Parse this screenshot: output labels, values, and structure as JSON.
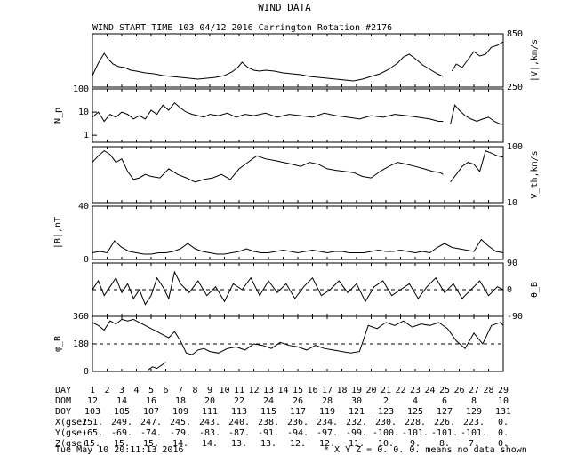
{
  "chart_data": {
    "type": "line",
    "title": "WIND DATA",
    "subtitle": "WIND START TIME 103 04/12 2016 Carrington Rotation #2176",
    "x_range_days": [
      1,
      29
    ],
    "panels": [
      {
        "ylabel": "|V|,km/s",
        "ylabel_side": "right",
        "scale": "linear",
        "ylim": [
          250,
          850
        ],
        "tick_labels_right": [
          "850",
          "250"
        ],
        "series": [
          {
            "x": [
              1.0,
              1.4,
              1.8,
              2.1,
              2.4,
              2.8,
              3.2,
              3.6,
              4.0,
              4.6,
              5.2,
              5.8,
              6.4,
              7.0,
              7.6,
              8.2,
              8.8,
              9.4,
              10.0,
              10.5,
              10.9,
              11.2,
              11.6,
              12.0,
              12.4,
              12.8,
              13.4,
              14.0,
              14.6,
              15.2,
              15.8,
              16.4,
              17.0,
              17.6,
              18.2,
              18.8,
              19.4,
              20.0,
              20.6,
              21.2,
              21.8,
              22.2,
              22.6,
              23.0,
              23.5,
              24.0,
              24.5,
              24.9
            ],
            "y": [
              380,
              520,
              630,
              560,
              510,
              480,
              470,
              440,
              430,
              410,
              400,
              380,
              370,
              360,
              350,
              340,
              350,
              360,
              380,
              420,
              470,
              530,
              470,
              440,
              430,
              440,
              430,
              410,
              400,
              390,
              370,
              360,
              350,
              340,
              330,
              320,
              340,
              370,
              400,
              450,
              520,
              590,
              620,
              570,
              500,
              450,
              400,
              370
            ]
          },
          {
            "x": [
              25.5,
              25.8,
              26.2,
              26.6,
              27.0,
              27.4,
              27.8,
              28.2,
              28.6,
              29.0
            ],
            "y": [
              430,
              510,
              470,
              560,
              650,
              600,
              620,
              700,
              720,
              760
            ]
          }
        ]
      },
      {
        "ylabel": "N_p",
        "ylabel_side": "left",
        "scale": "log",
        "ylim": [
          0.5,
          100
        ],
        "ticks": [
          1,
          10,
          100
        ],
        "tick_labels_left": [
          "1",
          "10",
          "100"
        ],
        "series": [
          {
            "x": [
              1.0,
              1.4,
              1.8,
              2.2,
              2.6,
              3.0,
              3.4,
              3.8,
              4.2,
              4.6,
              5.0,
              5.4,
              5.8,
              6.2,
              6.6,
              7.0,
              7.4,
              7.8,
              8.2,
              8.6,
              9.0,
              9.6,
              10.2,
              10.8,
              11.4,
              12.0,
              12.8,
              13.6,
              14.4,
              15.2,
              16.0,
              16.8,
              17.6,
              18.4,
              19.2,
              20.0,
              20.8,
              21.6,
              22.4,
              23.2,
              24.0,
              24.6,
              24.9
            ],
            "y": [
              6,
              10,
              4,
              8,
              6,
              10,
              8,
              5,
              7,
              5,
              12,
              8,
              20,
              12,
              25,
              15,
              10,
              8,
              7,
              6,
              8,
              7,
              9,
              6,
              8,
              7,
              9,
              6,
              8,
              7,
              6,
              9,
              7,
              6,
              5,
              7,
              6,
              8,
              7,
              6,
              5,
              4,
              4
            ]
          },
          {
            "x": [
              25.4,
              25.7,
              26.0,
              26.4,
              26.8,
              27.2,
              27.6,
              28.0,
              28.4,
              28.8,
              29.0
            ],
            "y": [
              3,
              20,
              12,
              7,
              5,
              4,
              5,
              6,
              4,
              3,
              3
            ]
          }
        ]
      },
      {
        "ylabel": "V_th,km/s",
        "ylabel_side": "right",
        "scale": "log",
        "ylim": [
          10,
          120
        ],
        "tick_labels_right": [
          "100",
          "10"
        ],
        "series": [
          {
            "x": [
              1.0,
              1.4,
              1.8,
              2.2,
              2.6,
              3.0,
              3.4,
              3.8,
              4.2,
              4.6,
              5.0,
              5.6,
              6.2,
              6.8,
              7.4,
              8.0,
              8.6,
              9.2,
              9.8,
              10.4,
              11.0,
              11.6,
              12.2,
              12.8,
              13.4,
              14.0,
              14.6,
              15.2,
              15.8,
              16.4,
              17.0,
              17.6,
              18.2,
              18.8,
              19.4,
              20.0,
              20.6,
              21.2,
              21.8,
              22.4,
              23.0,
              23.6,
              24.2,
              24.7,
              24.9
            ],
            "y": [
              60,
              80,
              100,
              85,
              60,
              70,
              40,
              28,
              30,
              35,
              32,
              30,
              45,
              35,
              30,
              25,
              28,
              30,
              35,
              28,
              45,
              60,
              80,
              70,
              65,
              60,
              55,
              50,
              60,
              55,
              45,
              42,
              40,
              38,
              32,
              30,
              40,
              50,
              60,
              55,
              50,
              45,
              40,
              38,
              35
            ]
          },
          {
            "x": [
              25.4,
              25.8,
              26.2,
              26.6,
              27.0,
              27.4,
              27.8,
              28.2,
              28.6,
              29.0
            ],
            "y": [
              25,
              35,
              50,
              60,
              55,
              40,
              100,
              90,
              80,
              75
            ]
          }
        ]
      },
      {
        "ylabel": "|B|,nT",
        "ylabel_side": "left",
        "scale": "linear",
        "ylim": [
          0,
          40
        ],
        "ticks": [
          0,
          40
        ],
        "tick_labels_left": [
          "0",
          "40"
        ],
        "series": [
          {
            "x": [
              1.0,
              1.5,
              2.0,
              2.5,
              3.0,
              3.5,
              4.0,
              4.5,
              5.0,
              5.5,
              6.0,
              6.5,
              7.0,
              7.5,
              8.0,
              8.5,
              9.0,
              9.5,
              10.0,
              10.5,
              11.0,
              11.5,
              12.0,
              12.5,
              13.0,
              13.5,
              14.0,
              14.5,
              15.0,
              15.5,
              16.0,
              16.5,
              17.0,
              17.5,
              18.0,
              18.5,
              19.0,
              19.5,
              20.0,
              20.5,
              21.0,
              21.5,
              22.0,
              22.5,
              23.0,
              23.5,
              24.0,
              24.5,
              25.0,
              25.5,
              26.0,
              26.5,
              27.0,
              27.5,
              28.0,
              28.5,
              29.0
            ],
            "y": [
              5,
              6,
              5,
              14,
              9,
              6,
              5,
              4,
              4,
              5,
              5,
              6,
              8,
              12,
              8,
              6,
              5,
              4,
              4,
              5,
              6,
              8,
              6,
              5,
              5,
              6,
              7,
              6,
              5,
              6,
              7,
              6,
              5,
              6,
              6,
              5,
              5,
              5,
              6,
              7,
              6,
              6,
              7,
              6,
              5,
              6,
              5,
              9,
              12,
              9,
              8,
              7,
              6,
              15,
              10,
              6,
              5
            ]
          }
        ]
      },
      {
        "ylabel": "θ_B",
        "ylabel_side": "right",
        "scale": "linear",
        "ylim": [
          -90,
          90
        ],
        "ticks": [
          -90,
          0,
          90
        ],
        "tick_labels_right": [
          "90",
          "0",
          "-90"
        ],
        "series": [
          {
            "x": [
              1.0,
              1.4,
              1.8,
              2.2,
              2.6,
              3.0,
              3.4,
              3.8,
              4.2,
              4.6,
              5.0,
              5.4,
              5.8,
              6.2,
              6.6,
              7.0,
              7.6,
              8.2,
              8.8,
              9.4,
              10.0,
              10.6,
              11.2,
              11.8,
              12.4,
              13.0,
              13.6,
              14.2,
              14.8,
              15.4,
              16.0,
              16.6,
              17.2,
              17.8,
              18.4,
              19.0,
              19.6,
              20.2,
              20.8,
              21.4,
              22.0,
              22.6,
              23.2,
              23.8,
              24.4,
              25.0,
              25.6,
              26.2,
              26.8,
              27.4,
              28.0,
              28.6,
              29.0
            ],
            "y": [
              0,
              30,
              -20,
              10,
              40,
              -10,
              20,
              -30,
              0,
              -50,
              -20,
              40,
              10,
              -30,
              60,
              20,
              -10,
              30,
              -20,
              10,
              -40,
              20,
              0,
              40,
              -20,
              30,
              -10,
              20,
              -30,
              10,
              40,
              -20,
              0,
              30,
              -10,
              20,
              -40,
              10,
              30,
              -20,
              0,
              20,
              -30,
              10,
              40,
              -10,
              20,
              -30,
              0,
              30,
              -20,
              10,
              0
            ]
          }
        ]
      },
      {
        "ylabel": "φ_B",
        "ylabel_side": "left",
        "scale": "linear",
        "ylim": [
          0,
          360
        ],
        "ticks": [
          0,
          180,
          360
        ],
        "tick_labels_left": [
          "0",
          "180",
          "360"
        ],
        "series": [
          {
            "x": [
              1.0,
              1.4,
              1.8,
              2.2,
              2.6,
              3.0,
              3.4,
              3.8,
              4.2,
              4.6,
              5.0,
              5.4,
              5.8,
              6.2,
              6.6,
              7.0,
              7.4,
              7.8,
              8.2,
              8.6,
              9.0,
              9.6,
              10.2,
              10.8,
              11.4,
              12.0,
              12.6,
              13.2,
              13.8,
              14.4,
              15.0,
              15.6,
              16.2,
              16.8,
              17.4,
              18.0,
              18.6,
              19.2,
              19.8,
              20.4,
              21.0,
              21.6,
              22.2,
              22.8,
              23.4,
              24.0,
              24.6,
              25.2,
              25.8,
              26.4,
              27.0,
              27.6,
              28.2,
              28.8,
              29.0
            ],
            "y": [
              320,
              300,
              270,
              330,
              310,
              340,
              330,
              340,
              320,
              300,
              280,
              260,
              240,
              220,
              260,
              200,
              120,
              110,
              140,
              150,
              130,
              120,
              150,
              160,
              140,
              180,
              170,
              150,
              190,
              170,
              160,
              140,
              170,
              150,
              140,
              130,
              120,
              130,
              300,
              280,
              320,
              300,
              330,
              290,
              310,
              300,
              320,
              280,
              200,
              150,
              250,
              180,
              300,
              320,
              300
            ]
          },
          {
            "x": [
              4.8,
              5.1,
              5.4,
              5.7,
              6.0
            ],
            "y": [
              10,
              30,
              20,
              40,
              60
            ]
          }
        ]
      }
    ]
  },
  "table": {
    "rows": [
      {
        "label": "DAY",
        "values": [
          "1",
          "2",
          "3",
          "4",
          "5",
          "6",
          "7",
          "8",
          "9",
          "10",
          "11",
          "12",
          "13",
          "14",
          "15",
          "16",
          "17",
          "18",
          "19",
          "20",
          "21",
          "22",
          "23",
          "24",
          "25",
          "26",
          "27",
          "28",
          "29"
        ]
      },
      {
        "label": "DOM",
        "values": [
          "12",
          "14",
          "16",
          "18",
          "20",
          "22",
          "24",
          "26",
          "28",
          "30",
          "2",
          "4",
          "6",
          "8",
          "10"
        ]
      },
      {
        "label": "DOY",
        "values": [
          "103",
          "105",
          "107",
          "109",
          "111",
          "113",
          "115",
          "117",
          "119",
          "121",
          "123",
          "125",
          "127",
          "129",
          "131"
        ]
      },
      {
        "label": "X(gse)",
        "values": [
          "251.",
          "249.",
          "247.",
          "245.",
          "243.",
          "240.",
          "238.",
          "236.",
          "234.",
          "232.",
          "230.",
          "228.",
          "226.",
          "223.",
          "0."
        ]
      },
      {
        "label": "Y(gse)",
        "values": [
          "-65.",
          "-69.",
          "-74.",
          "-79.",
          "-83.",
          "-87.",
          "-91.",
          "-94.",
          "-97.",
          "-99.",
          "-100.",
          "-101.",
          "-101.",
          "-101.",
          "0."
        ]
      },
      {
        "label": "Z(gse)",
        "values": [
          "15.",
          "15.",
          "15.",
          "14.",
          "14.",
          "13.",
          "13.",
          "12.",
          "12.",
          "11.",
          "10.",
          "9.",
          "8.",
          "7.",
          "0."
        ]
      }
    ]
  },
  "footer": {
    "left": "Tue May 10 20:11:13 2016",
    "right": "* X Y Z = 0. 0. 0. means no data shown"
  }
}
